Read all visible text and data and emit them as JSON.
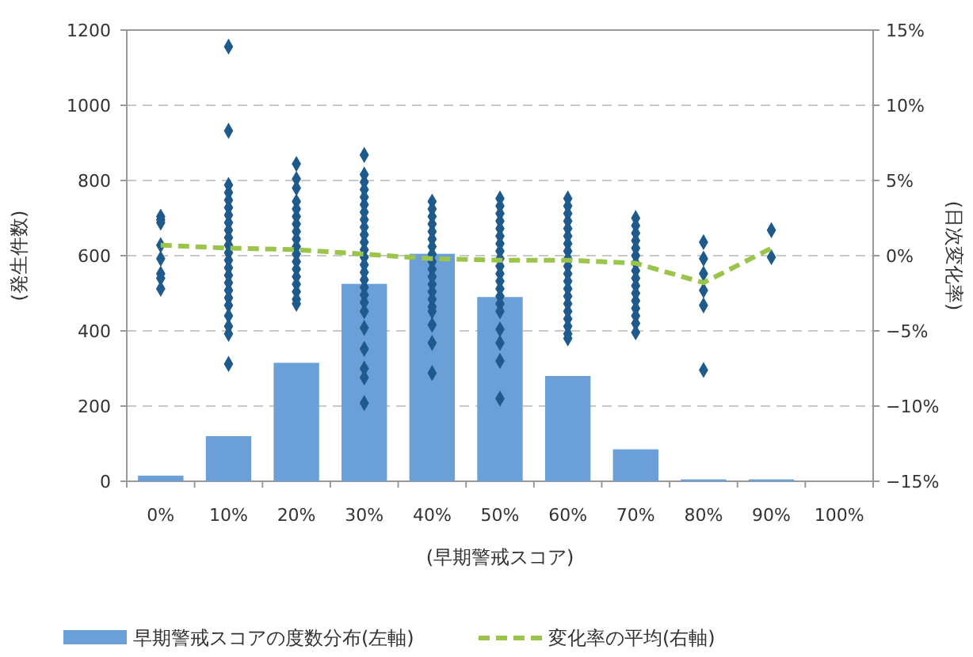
{
  "chart_data": {
    "type": "bar",
    "xlabel": "(早期警戒スコア)",
    "ylabel": "(発生件数)",
    "y2label": "(日次変化率)",
    "categories": [
      "0%",
      "10%",
      "20%",
      "30%",
      "40%",
      "50%",
      "60%",
      "70%",
      "80%",
      "90%",
      "100%"
    ],
    "ylim": [
      0,
      1200
    ],
    "yticks": [
      0,
      200,
      400,
      600,
      800,
      1000,
      1200
    ],
    "y2lim": [
      -15,
      15
    ],
    "y2ticks": [
      {
        "value": -15,
        "label": "−15%"
      },
      {
        "value": -10,
        "label": "−10%"
      },
      {
        "value": -5,
        "label": "−5%"
      },
      {
        "value": 0,
        "label": "0%"
      },
      {
        "value": 5,
        "label": "5%"
      },
      {
        "value": 10,
        "label": "10%"
      },
      {
        "value": 15,
        "label": "15%"
      }
    ],
    "grid": "y",
    "legend": "bottom",
    "series": [
      {
        "name": "早期警戒スコアの度数分布(左軸)",
        "color": "#6a9fd8",
        "values": [
          15,
          120,
          315,
          525,
          605,
          490,
          280,
          85,
          5,
          5,
          0
        ]
      },
      {
        "type": "scatter",
        "axis": "y2",
        "color": "#1f5a8c",
        "marker": "diamond",
        "x": [
          "0%",
          "0%",
          "0%",
          "0%",
          "0%",
          "0%",
          "0%",
          "0%",
          "10%",
          "10%",
          "10%",
          "10%",
          "10%",
          "10%",
          "10%",
          "10%",
          "10%",
          "10%",
          "10%",
          "10%",
          "10%",
          "10%",
          "10%",
          "10%",
          "10%",
          "10%",
          "10%",
          "10%",
          "10%",
          "10%",
          "10%",
          "20%",
          "20%",
          "20%",
          "20%",
          "20%",
          "20%",
          "20%",
          "20%",
          "20%",
          "20%",
          "20%",
          "20%",
          "20%",
          "20%",
          "20%",
          "20%",
          "20%",
          "20%",
          "30%",
          "30%",
          "30%",
          "30%",
          "30%",
          "30%",
          "30%",
          "30%",
          "30%",
          "30%",
          "30%",
          "30%",
          "30%",
          "30%",
          "30%",
          "30%",
          "30%",
          "30%",
          "30%",
          "30%",
          "30%",
          "30%",
          "30%",
          "30%",
          "30%",
          "40%",
          "40%",
          "40%",
          "40%",
          "40%",
          "40%",
          "40%",
          "40%",
          "40%",
          "40%",
          "40%",
          "40%",
          "40%",
          "40%",
          "40%",
          "40%",
          "40%",
          "40%",
          "40%",
          "50%",
          "50%",
          "50%",
          "50%",
          "50%",
          "50%",
          "50%",
          "50%",
          "50%",
          "50%",
          "50%",
          "50%",
          "50%",
          "50%",
          "50%",
          "50%",
          "50%",
          "50%",
          "50%",
          "50%",
          "60%",
          "60%",
          "60%",
          "60%",
          "60%",
          "60%",
          "60%",
          "60%",
          "60%",
          "60%",
          "60%",
          "60%",
          "60%",
          "60%",
          "60%",
          "60%",
          "60%",
          "60%",
          "60%",
          "60%",
          "70%",
          "70%",
          "70%",
          "70%",
          "70%",
          "70%",
          "70%",
          "70%",
          "70%",
          "70%",
          "70%",
          "70%",
          "70%",
          "70%",
          "70%",
          "70%",
          "80%",
          "80%",
          "80%",
          "80%",
          "80%",
          "80%",
          "90%",
          "90%"
        ],
        "values": [
          2.6,
          2.4,
          2.2,
          0.7,
          -0.2,
          -1.2,
          -1.5,
          -2.2,
          13.9,
          8.3,
          4.7,
          4.2,
          3.7,
          3.2,
          2.7,
          2.2,
          1.7,
          1.2,
          0.7,
          0.2,
          -0.3,
          -0.8,
          -1.3,
          -1.8,
          -2.3,
          -2.8,
          -3.3,
          -4.0,
          -4.7,
          -5.2,
          -7.2,
          6.1,
          5.1,
          4.5,
          3.6,
          3.1,
          2.6,
          2.1,
          1.6,
          1.1,
          0.6,
          0.1,
          -0.4,
          -0.9,
          -1.4,
          -1.9,
          -2.4,
          -2.9,
          -3.2,
          6.7,
          5.4,
          4.9,
          4.4,
          3.9,
          3.4,
          2.9,
          2.4,
          1.9,
          1.4,
          0.9,
          0.4,
          -0.1,
          -0.6,
          -1.1,
          -1.6,
          -2.1,
          -2.6,
          -3.1,
          -3.7,
          -4.8,
          -6.2,
          -7.5,
          -8.1,
          -9.8,
          3.6,
          3.1,
          2.6,
          2.1,
          1.6,
          1.1,
          0.6,
          0.1,
          -0.4,
          -0.9,
          -1.4,
          -1.9,
          -2.4,
          -2.9,
          -3.4,
          -3.7,
          -4.6,
          -5.8,
          -7.8,
          3.8,
          3.3,
          2.8,
          2.3,
          1.8,
          1.3,
          0.8,
          0.3,
          -0.2,
          -0.7,
          -1.2,
          -1.7,
          -2.2,
          -2.7,
          -3.2,
          -3.7,
          -4.9,
          -5.8,
          -7.0,
          -9.5,
          3.8,
          3.3,
          2.8,
          2.3,
          1.8,
          1.3,
          0.8,
          0.3,
          -0.2,
          -0.7,
          -1.2,
          -1.7,
          -2.2,
          -2.7,
          -3.2,
          -3.7,
          -4.2,
          -4.7,
          -5.2,
          -5.5,
          2.5,
          2.0,
          1.5,
          1.0,
          0.5,
          0.0,
          -0.5,
          -1.0,
          -1.5,
          -2.0,
          -2.5,
          -3.0,
          -3.5,
          -4.0,
          -4.5,
          -5.1,
          0.9,
          -0.2,
          -1.2,
          -2.3,
          -3.3,
          -7.6,
          1.7,
          -0.1
        ]
      },
      {
        "type": "line",
        "axis": "y2",
        "name": "変化率の平均(右軸)",
        "color": "#9bc54a",
        "line_style": "dashed",
        "marker": "none",
        "values": [
          0.7,
          0.5,
          0.4,
          0.1,
          -0.2,
          -0.3,
          -0.3,
          -0.5,
          -1.8,
          0.5,
          null
        ]
      }
    ]
  }
}
